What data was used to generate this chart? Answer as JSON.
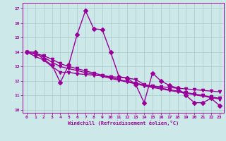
{
  "xlabel": "Windchill (Refroidissement éolien,°C)",
  "bg_color": "#cce8e8",
  "line_color": "#990099",
  "grid_color": "#aacccc",
  "ylim": [
    9.8,
    17.4
  ],
  "xlim": [
    -0.5,
    23.5
  ],
  "yticks": [
    10,
    11,
    12,
    13,
    14,
    15,
    16,
    17
  ],
  "xticks": [
    0,
    1,
    2,
    3,
    4,
    5,
    6,
    7,
    8,
    9,
    10,
    11,
    12,
    13,
    14,
    15,
    16,
    17,
    18,
    19,
    20,
    21,
    22,
    23
  ],
  "series": [
    [
      14.0,
      14.0,
      13.5,
      13.1,
      11.9,
      13.1,
      15.2,
      16.85,
      15.6,
      15.55,
      14.0,
      12.3,
      12.2,
      11.75,
      10.5,
      12.55,
      12.0,
      11.7,
      11.5,
      11.0,
      10.5,
      10.5,
      10.8,
      10.3
    ],
    [
      14.0,
      13.7,
      13.45,
      13.0,
      12.6,
      12.6,
      12.5,
      12.45,
      12.4,
      12.35,
      12.3,
      12.25,
      12.2,
      12.1,
      11.75,
      11.65,
      11.6,
      11.55,
      11.5,
      11.45,
      11.4,
      11.35,
      11.3,
      11.25
    ],
    [
      14.0,
      13.85,
      13.65,
      13.3,
      13.0,
      12.85,
      12.72,
      12.58,
      12.45,
      12.32,
      12.18,
      12.05,
      11.92,
      11.8,
      11.67,
      11.55,
      11.45,
      11.35,
      11.25,
      11.15,
      11.05,
      10.95,
      10.85,
      10.75
    ],
    [
      14.0,
      13.9,
      13.75,
      13.5,
      13.2,
      13.0,
      12.85,
      12.7,
      12.55,
      12.4,
      12.25,
      12.1,
      11.97,
      11.85,
      11.72,
      11.6,
      11.5,
      11.4,
      11.3,
      11.2,
      11.1,
      11.0,
      10.9,
      10.8
    ]
  ],
  "marker_styles": [
    "D",
    "v",
    "v",
    "v"
  ],
  "marker_sizes": [
    3,
    3,
    3,
    3
  ],
  "linewidths": [
    1.0,
    1.0,
    1.0,
    1.0
  ]
}
